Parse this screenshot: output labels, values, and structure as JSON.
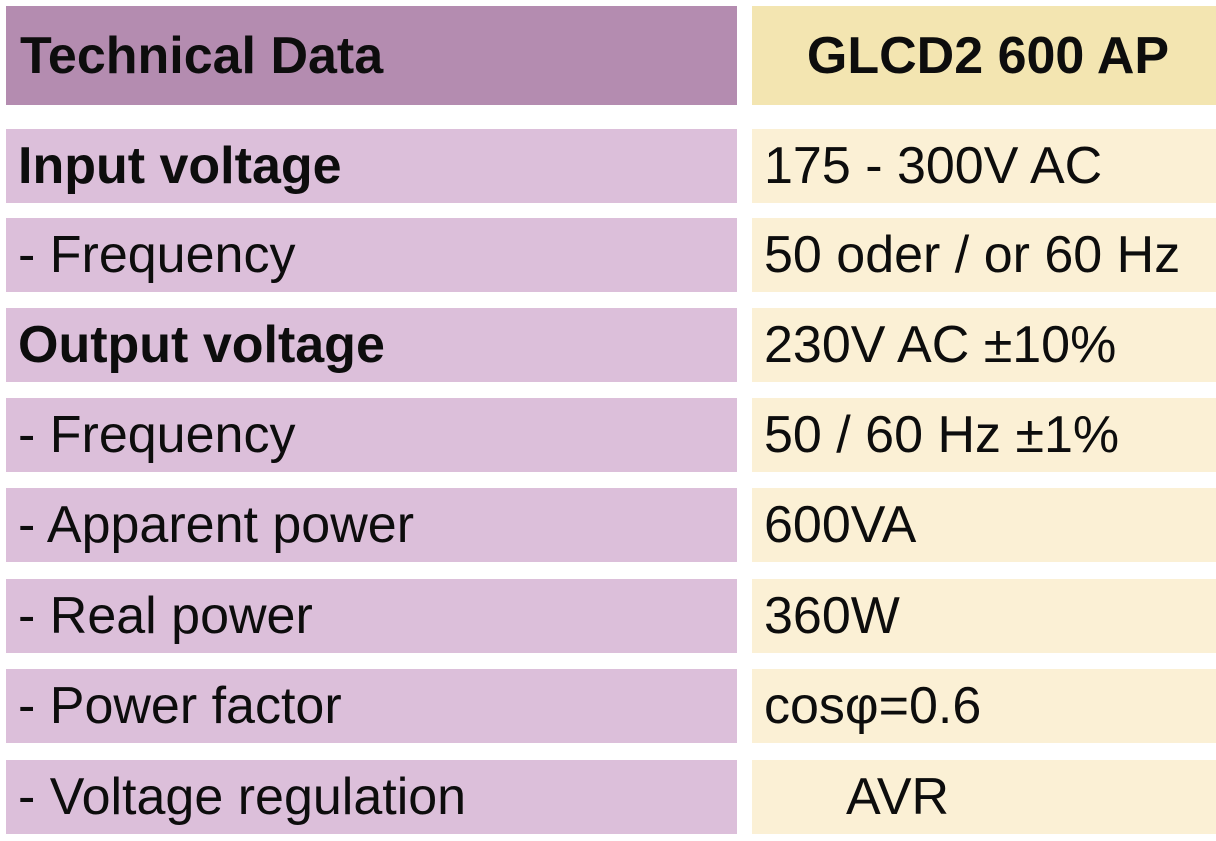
{
  "header": {
    "left_label": "Technical Data",
    "right_label": "GLCD2 600 AP"
  },
  "rows": [
    {
      "label": "Input voltage",
      "value": "175 - 300V AC"
    },
    {
      "label": "- Frequency",
      "value": "50 oder / or 60 Hz"
    },
    {
      "label": "Output voltage",
      "value": "230V AC ±10%"
    },
    {
      "label": "- Frequency",
      "value": "50 / 60 Hz ±1%"
    },
    {
      "label": "- Apparent power",
      "value": "600VA"
    },
    {
      "label": "- Real power",
      "value": "360W"
    },
    {
      "label": "- Power factor",
      "value": "cosφ=0.6"
    },
    {
      "label": "- Voltage regulation",
      "value": "AVR"
    }
  ],
  "colors": {
    "header_left_bg": "#b48cb0",
    "header_right_bg": "#f3e5b1",
    "label_bg": "#dcbfda",
    "value_bg": "#fbf0d5"
  }
}
